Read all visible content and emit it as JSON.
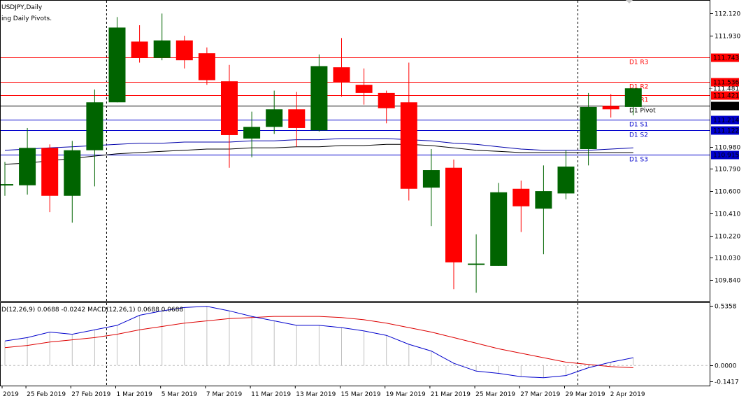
{
  "window": {
    "symbol_title": "USDJPY,Daily",
    "indicator_title": "ing Daily Pivots.",
    "macd_title": "D(12,26,9) 0.0688 -0.0242 MACD(12,26,1) 0.0688 0.0688"
  },
  "colors": {
    "bull": "#006400",
    "bear": "#ff0000",
    "resistance": "#ff0000",
    "support": "#0000cc",
    "pivot": "#000000",
    "ma_blue": "#0000aa",
    "ma_black": "#000000",
    "macd_main": "#0000cc",
    "macd_signal": "#dd0000",
    "histogram": "#c0c0c0"
  },
  "chart_data": [
    {
      "type": "candlestick",
      "title": "USDJPY,Daily",
      "ylim": [
        109.66,
        112.23
      ],
      "yticks": [
        "112.120",
        "111.930",
        "111.743",
        "111.536",
        "111.421",
        "111.329",
        "111.214",
        "111.122",
        "110.980",
        "110.915",
        "110.790",
        "110.600",
        "110.410",
        "110.220",
        "110.030",
        "109.840"
      ],
      "x_labels": [
        {
          "label": "2019",
          "index": 0
        },
        {
          "label": "25 Feb 2019",
          "index": 1
        },
        {
          "label": "27 Feb 2019",
          "index": 3
        },
        {
          "label": "1 Mar 2019",
          "index": 5
        },
        {
          "label": "5 Mar 2019",
          "index": 7
        },
        {
          "label": "7 Mar 2019",
          "index": 9
        },
        {
          "label": "11 Mar 2019",
          "index": 11
        },
        {
          "label": "13 Mar 2019",
          "index": 13
        },
        {
          "label": "15 Mar 2019",
          "index": 15
        },
        {
          "label": "19 Mar 2019",
          "index": 17
        },
        {
          "label": "21 Mar 2019",
          "index": 19
        },
        {
          "label": "25 Mar 2019",
          "index": 21
        },
        {
          "label": "27 Mar 2019",
          "index": 23
        },
        {
          "label": "29 Mar 2019",
          "index": 25
        },
        {
          "label": "2 Apr 2019",
          "index": 27
        }
      ],
      "candles": [
        {
          "o": 110.66,
          "h": 110.85,
          "l": 110.56,
          "c": 110.66
        },
        {
          "o": 110.65,
          "h": 111.14,
          "l": 110.57,
          "c": 110.97
        },
        {
          "o": 110.97,
          "h": 111.0,
          "l": 110.42,
          "c": 110.56
        },
        {
          "o": 110.56,
          "h": 111.03,
          "l": 110.33,
          "c": 110.95
        },
        {
          "o": 110.95,
          "h": 111.47,
          "l": 110.64,
          "c": 111.36
        },
        {
          "o": 111.36,
          "h": 112.09,
          "l": 111.36,
          "c": 112.0
        },
        {
          "o": 111.88,
          "h": 112.02,
          "l": 111.7,
          "c": 111.74
        },
        {
          "o": 111.74,
          "h": 112.12,
          "l": 111.72,
          "c": 111.89
        },
        {
          "o": 111.89,
          "h": 111.93,
          "l": 111.65,
          "c": 111.72
        },
        {
          "o": 111.78,
          "h": 111.83,
          "l": 111.51,
          "c": 111.55
        },
        {
          "o": 111.54,
          "h": 111.68,
          "l": 110.8,
          "c": 111.08
        },
        {
          "o": 111.05,
          "h": 111.28,
          "l": 110.89,
          "c": 111.15
        },
        {
          "o": 111.15,
          "h": 111.46,
          "l": 111.09,
          "c": 111.3
        },
        {
          "o": 111.3,
          "h": 111.45,
          "l": 110.98,
          "c": 111.14
        },
        {
          "o": 111.12,
          "h": 111.77,
          "l": 111.11,
          "c": 111.67
        },
        {
          "o": 111.66,
          "h": 111.91,
          "l": 111.41,
          "c": 111.53
        },
        {
          "o": 111.51,
          "h": 111.65,
          "l": 111.34,
          "c": 111.44
        },
        {
          "o": 111.44,
          "h": 111.46,
          "l": 111.18,
          "c": 111.31
        },
        {
          "o": 111.36,
          "h": 111.7,
          "l": 110.52,
          "c": 110.62
        },
        {
          "o": 110.63,
          "h": 110.96,
          "l": 110.3,
          "c": 110.78
        },
        {
          "o": 110.8,
          "h": 110.87,
          "l": 109.76,
          "c": 109.99
        },
        {
          "o": 109.97,
          "h": 110.23,
          "l": 109.73,
          "c": 109.98
        },
        {
          "o": 109.96,
          "h": 110.67,
          "l": 109.96,
          "c": 110.59
        },
        {
          "o": 110.62,
          "h": 110.69,
          "l": 110.25,
          "c": 110.47
        },
        {
          "o": 110.45,
          "h": 110.82,
          "l": 110.06,
          "c": 110.6
        },
        {
          "o": 110.58,
          "h": 110.95,
          "l": 110.53,
          "c": 110.81
        },
        {
          "o": 110.96,
          "h": 111.44,
          "l": 110.82,
          "c": 111.32
        },
        {
          "o": 111.33,
          "h": 111.43,
          "l": 111.23,
          "c": 111.3
        },
        {
          "o": 111.32,
          "h": 111.48,
          "l": 111.25,
          "c": 111.48
        }
      ],
      "pivots": [
        {
          "name": "D1 R3",
          "value": 111.743,
          "label": "111.743",
          "kind": "resistance"
        },
        {
          "name": "D1 R2",
          "value": 111.536,
          "label": "111.536",
          "kind": "resistance"
        },
        {
          "name": "D1 R1",
          "value": 111.421,
          "label": "111.421",
          "kind": "resistance"
        },
        {
          "name": "D1 Pivot",
          "value": 111.329,
          "label": "111.329",
          "kind": "pivot"
        },
        {
          "name": "D1 S1",
          "value": 111.214,
          "label": "111.214",
          "kind": "support"
        },
        {
          "name": "D1 S2",
          "value": 111.122,
          "label": "111.122",
          "kind": "support"
        },
        {
          "name": "D1 S3",
          "value": 110.915,
          "label": "110.915",
          "kind": "support"
        }
      ],
      "current_price": {
        "value": 111.481,
        "label": "111.481"
      },
      "ma_blue": [
        110.95,
        110.96,
        110.97,
        110.98,
        110.99,
        111.0,
        111.01,
        111.01,
        111.02,
        111.02,
        111.02,
        111.03,
        111.03,
        111.04,
        111.04,
        111.05,
        111.05,
        111.05,
        111.04,
        111.03,
        111.01,
        111.0,
        110.98,
        110.96,
        110.95,
        110.95,
        110.95,
        110.96,
        110.97
      ],
      "ma_black": [
        110.83,
        110.84,
        110.86,
        110.88,
        110.9,
        110.92,
        110.93,
        110.94,
        110.95,
        110.96,
        110.96,
        110.97,
        110.97,
        110.98,
        110.98,
        110.99,
        110.99,
        111.0,
        111.0,
        110.99,
        110.97,
        110.95,
        110.94,
        110.93,
        110.93,
        110.93,
        110.93,
        110.93,
        110.93
      ],
      "vlines_at_index": [
        5,
        26
      ]
    },
    {
      "type": "line",
      "title": "MACD",
      "ylim": [
        -0.18,
        0.56
      ],
      "yticks": [
        {
          "value": 0.5358,
          "label": "0.5358"
        },
        {
          "value": 0.0,
          "label": "0.0000"
        },
        {
          "value": -0.1417,
          "label": "-0.1417"
        }
      ],
      "series": [
        {
          "name": "MACD",
          "values": [
            0.22,
            0.25,
            0.3,
            0.28,
            0.32,
            0.36,
            0.45,
            0.49,
            0.52,
            0.53,
            0.49,
            0.44,
            0.4,
            0.36,
            0.36,
            0.34,
            0.31,
            0.27,
            0.19,
            0.13,
            0.02,
            -0.05,
            -0.07,
            -0.1,
            -0.11,
            -0.09,
            -0.02,
            0.03,
            0.07
          ]
        },
        {
          "name": "Signal",
          "values": [
            0.16,
            0.18,
            0.21,
            0.23,
            0.25,
            0.28,
            0.32,
            0.35,
            0.38,
            0.4,
            0.42,
            0.43,
            0.44,
            0.44,
            0.44,
            0.43,
            0.41,
            0.38,
            0.34,
            0.3,
            0.25,
            0.2,
            0.15,
            0.11,
            0.07,
            0.03,
            0.01,
            -0.01,
            -0.02
          ]
        }
      ],
      "histogram": [
        0.22,
        0.25,
        0.3,
        0.28,
        0.32,
        0.36,
        0.45,
        0.49,
        0.52,
        0.53,
        0.49,
        0.44,
        0.4,
        0.36,
        0.36,
        0.34,
        0.31,
        0.27,
        0.19,
        0.13,
        0.02,
        -0.05,
        -0.07,
        -0.1,
        -0.11,
        -0.09,
        -0.02,
        0.03,
        0.07
      ]
    }
  ]
}
